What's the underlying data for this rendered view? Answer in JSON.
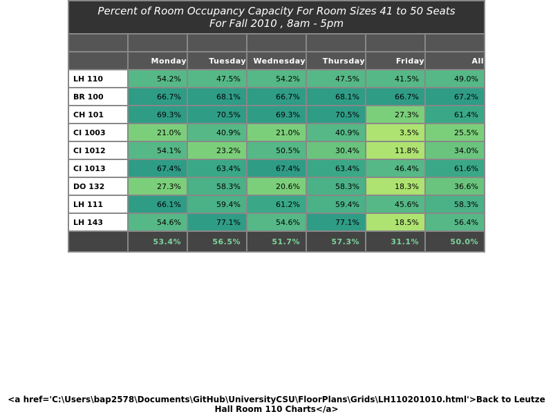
{
  "chart_data": {
    "type": "table",
    "title": "Percent of Room Occupancy Capacity For Room Sizes 41 to 50 Seats",
    "subtitle": "For Fall 2010  , 8am - 5pm",
    "columns": [
      "Monday",
      "Tuesday",
      "Wednesday",
      "Thursday",
      "Friday",
      "All"
    ],
    "rows": [
      {
        "room": "LH 110",
        "values": [
          "54.2%",
          "47.5%",
          "54.2%",
          "47.5%",
          "41.5%",
          "49.0%"
        ],
        "colors": [
          "#56b886",
          "#56b886",
          "#56b886",
          "#56b886",
          "#56b886",
          "#56b886"
        ]
      },
      {
        "room": "BR 100",
        "values": [
          "66.7%",
          "68.1%",
          "66.7%",
          "68.1%",
          "66.7%",
          "67.2%"
        ],
        "colors": [
          "#2f9c86",
          "#2f9c86",
          "#2f9c86",
          "#2f9c86",
          "#2f9c86",
          "#2f9c86"
        ]
      },
      {
        "room": "CH 101",
        "values": [
          "69.3%",
          "70.5%",
          "69.3%",
          "70.5%",
          "27.3%",
          "61.4%"
        ],
        "colors": [
          "#2f9c86",
          "#2f9c86",
          "#2f9c86",
          "#2f9c86",
          "#7ccf7a",
          "#3aa886"
        ]
      },
      {
        "room": "CI 1003",
        "values": [
          "21.0%",
          "40.9%",
          "21.0%",
          "40.9%",
          "3.5%",
          "25.5%"
        ],
        "colors": [
          "#7ccf7a",
          "#56b886",
          "#7ccf7a",
          "#56b886",
          "#aee271",
          "#7ccf7a"
        ]
      },
      {
        "room": "CI 1012",
        "values": [
          "54.1%",
          "23.2%",
          "50.5%",
          "30.4%",
          "11.8%",
          "34.0%"
        ],
        "colors": [
          "#56b886",
          "#7ccf7a",
          "#56b886",
          "#6ac47e",
          "#aee271",
          "#6ac47e"
        ]
      },
      {
        "room": "CI 1013",
        "values": [
          "67.4%",
          "63.4%",
          "67.4%",
          "63.4%",
          "46.4%",
          "61.6%"
        ],
        "colors": [
          "#2f9c86",
          "#3aa886",
          "#2f9c86",
          "#3aa886",
          "#56b886",
          "#3aa886"
        ]
      },
      {
        "room": "DO 132",
        "values": [
          "27.3%",
          "58.3%",
          "20.6%",
          "58.3%",
          "18.3%",
          "36.6%"
        ],
        "colors": [
          "#7ccf7a",
          "#4bb186",
          "#7ccf7a",
          "#4bb186",
          "#aee271",
          "#6ac47e"
        ]
      },
      {
        "room": "LH 111",
        "values": [
          "66.1%",
          "59.4%",
          "61.2%",
          "59.4%",
          "45.6%",
          "58.3%"
        ],
        "colors": [
          "#2f9c86",
          "#4bb186",
          "#3aa886",
          "#4bb186",
          "#56b886",
          "#4bb186"
        ]
      },
      {
        "room": "LH 143",
        "values": [
          "54.6%",
          "77.1%",
          "54.6%",
          "77.1%",
          "18.5%",
          "56.4%"
        ],
        "colors": [
          "#56b886",
          "#2f9c86",
          "#56b886",
          "#2f9c86",
          "#aee271",
          "#56b886"
        ]
      }
    ],
    "totals": [
      "53.4%",
      "56.5%",
      "51.7%",
      "57.3%",
      "31.1%",
      "50.0%"
    ],
    "totals_color": "#7ed49b"
  },
  "footer": {
    "text": "<a href='C:\\Users\\bap2578\\Documents\\GitHub\\UniversityCSU\\FloorPlans\\Grids\\LH110201010.html'>Back to Leutze Hall Room 110 Charts</a>"
  }
}
